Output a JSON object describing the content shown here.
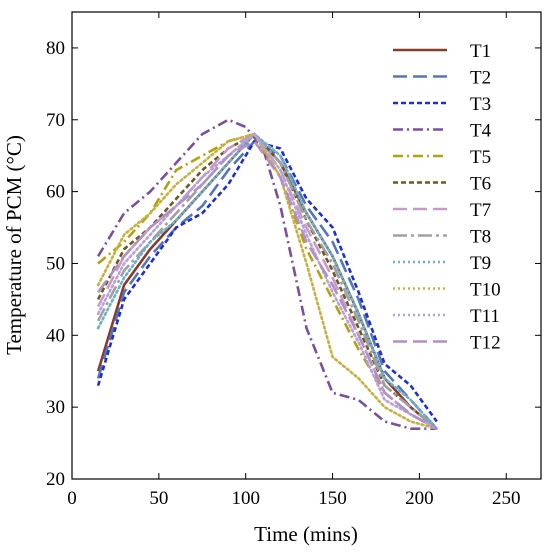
{
  "chart_data": {
    "type": "line",
    "xlabel": "Time (mins)",
    "ylabel": "Temperature of PCM (°C)",
    "xlim": [
      0,
      270
    ],
    "ylim": [
      20,
      85
    ],
    "xticks": [
      "0",
      "50",
      "100",
      "150",
      "200",
      "250"
    ],
    "xtick_values": [
      0,
      50,
      100,
      150,
      200,
      250
    ],
    "yticks": [
      "20",
      "30",
      "40",
      "50",
      "60",
      "70",
      "80"
    ],
    "ytick_values": [
      20,
      30,
      40,
      50,
      60,
      70,
      80
    ],
    "legend_position": "top-right",
    "series": [
      {
        "name": "T1",
        "color": "#8B3A2A",
        "dash": "solid",
        "x": [
          15,
          30,
          45,
          60,
          75,
          90,
          105,
          120,
          135,
          150,
          165,
          180,
          195,
          210
        ],
        "y": [
          35,
          47,
          52,
          56,
          60,
          64,
          68,
          64,
          57,
          51,
          43,
          34,
          30,
          27
        ]
      },
      {
        "name": "T2",
        "color": "#5577B8",
        "dash": "longdash",
        "x": [
          15,
          30,
          45,
          60,
          75,
          90,
          105,
          120,
          135,
          150,
          165,
          180,
          195,
          210
        ],
        "y": [
          34,
          46,
          51,
          55,
          58,
          63,
          67,
          65,
          58,
          53,
          45,
          35,
          31,
          27
        ]
      },
      {
        "name": "T3",
        "color": "#1F2FCF",
        "dash": "dash",
        "x": [
          15,
          30,
          45,
          60,
          75,
          90,
          105,
          120,
          135,
          150,
          165,
          180,
          195,
          210
        ],
        "y": [
          33,
          45,
          50,
          55,
          57,
          61,
          67,
          66,
          59,
          55,
          46,
          36,
          33,
          28
        ]
      },
      {
        "name": "T4",
        "color": "#7B4FA0",
        "dash": "dashdot",
        "x": [
          15,
          30,
          45,
          60,
          75,
          90,
          100,
          110,
          120,
          135,
          150,
          165,
          180,
          195,
          210
        ],
        "y": [
          51,
          57,
          60,
          64,
          68,
          70,
          69,
          66,
          58,
          41,
          32,
          31,
          28,
          27,
          27
        ]
      },
      {
        "name": "T5",
        "color": "#B5A010",
        "dash": "dashdot",
        "x": [
          15,
          30,
          45,
          60,
          75,
          90,
          105,
          120,
          135,
          150,
          165,
          180,
          195,
          210
        ],
        "y": [
          50,
          53,
          57,
          63,
          65,
          67,
          68,
          62,
          52,
          45,
          38,
          32,
          29,
          27
        ]
      },
      {
        "name": "T6",
        "color": "#6B5A20",
        "dash": "dash",
        "x": [
          15,
          30,
          45,
          60,
          75,
          90,
          105,
          120,
          135,
          150,
          165,
          180,
          195,
          210
        ],
        "y": [
          45,
          52,
          55,
          59,
          63,
          66,
          68,
          64,
          56,
          49,
          41,
          33,
          30,
          27
        ]
      },
      {
        "name": "T7",
        "color": "#C89AC8",
        "dash": "longdash",
        "x": [
          15,
          30,
          45,
          60,
          75,
          90,
          105,
          120,
          135,
          150,
          165,
          180,
          195,
          210
        ],
        "y": [
          44,
          51,
          55,
          58,
          62,
          66,
          68,
          63,
          55,
          48,
          40,
          32,
          29,
          27
        ]
      },
      {
        "name": "T8",
        "color": "#A0A0A0",
        "dash": "longdashdot",
        "x": [
          15,
          30,
          45,
          60,
          75,
          90,
          105,
          120,
          135,
          150,
          165,
          180,
          195,
          210
        ],
        "y": [
          42,
          49,
          53,
          57,
          61,
          65,
          68,
          64,
          56,
          50,
          42,
          33,
          30,
          27
        ]
      },
      {
        "name": "T9",
        "color": "#6FB0C8",
        "dash": "dot",
        "x": [
          15,
          30,
          45,
          60,
          75,
          90,
          105,
          120,
          135,
          150,
          165,
          180,
          195,
          210
        ],
        "y": [
          41,
          48,
          53,
          56,
          60,
          64,
          68,
          65,
          57,
          51,
          43,
          34,
          31,
          27
        ]
      },
      {
        "name": "T10",
        "color": "#C8B040",
        "dash": "dot",
        "x": [
          15,
          30,
          45,
          60,
          75,
          90,
          105,
          120,
          135,
          150,
          165,
          180,
          195,
          210
        ],
        "y": [
          47,
          54,
          57,
          61,
          64,
          67,
          68,
          62,
          50,
          37,
          34,
          30,
          28,
          27
        ]
      },
      {
        "name": "T11",
        "color": "#B8A0D8",
        "dash": "dot",
        "x": [
          15,
          30,
          45,
          60,
          75,
          90,
          105,
          120,
          135,
          150,
          165,
          180,
          195,
          210
        ],
        "y": [
          43,
          50,
          54,
          58,
          62,
          65,
          68,
          63,
          54,
          46,
          39,
          31,
          29,
          27
        ]
      },
      {
        "name": "T12",
        "color": "#B090C8",
        "dash": "longdash",
        "x": [
          15,
          30,
          45,
          60,
          75,
          90,
          105,
          120,
          135,
          150,
          165,
          180,
          195,
          210
        ],
        "y": [
          46,
          51,
          55,
          58,
          61,
          65,
          67,
          62,
          53,
          47,
          40,
          32,
          29,
          27
        ]
      }
    ]
  }
}
